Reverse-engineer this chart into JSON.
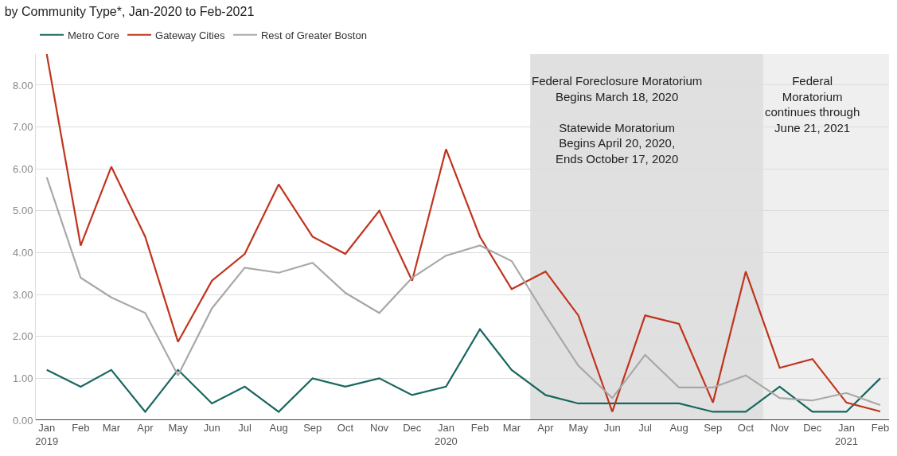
{
  "chart_data": {
    "type": "line",
    "title": "by Community Type*, Jan-2020 to Feb-2021",
    "x": [
      "2019-01",
      "2019-02",
      "2019-03",
      "2019-04",
      "2019-05",
      "2019-06",
      "2019-07",
      "2019-08",
      "2019-09",
      "2019-10",
      "2019-11",
      "2019-12",
      "2020-01",
      "2020-02",
      "2020-03",
      "2020-04",
      "2020-05",
      "2020-06",
      "2020-07",
      "2020-08",
      "2020-09",
      "2020-10",
      "2020-11",
      "2020-12",
      "2021-01",
      "2021-02"
    ],
    "series": [
      {
        "name": "Metro Core",
        "color": "#17675f",
        "values": [
          1.2,
          0.8,
          1.2,
          0.2,
          1.2,
          0.4,
          0.8,
          0.2,
          1.0,
          0.8,
          1.0,
          0.6,
          0.8,
          2.17,
          1.2,
          0.6,
          0.4,
          0.4,
          0.4,
          0.4,
          0.2,
          0.2,
          0.8,
          0.2,
          0.2,
          1.0
        ]
      },
      {
        "name": "Gateway Cities",
        "color": "#c0341d",
        "values": [
          8.74,
          4.17,
          6.05,
          4.38,
          1.87,
          3.33,
          3.97,
          5.63,
          4.38,
          3.97,
          5.0,
          3.33,
          6.47,
          4.38,
          3.13,
          3.55,
          2.5,
          0.2,
          2.5,
          2.3,
          0.42,
          3.55,
          1.25,
          1.46,
          0.42,
          0.21
        ]
      },
      {
        "name": "Rest of Greater Boston",
        "color": "#a8a8a8",
        "values": [
          5.8,
          3.4,
          2.93,
          2.56,
          1.07,
          2.67,
          3.64,
          3.52,
          3.76,
          3.04,
          2.56,
          3.4,
          3.93,
          4.17,
          3.8,
          2.5,
          1.3,
          0.53,
          1.56,
          0.78,
          0.78,
          1.07,
          0.53,
          0.47,
          0.65,
          0.36
        ]
      }
    ],
    "xlim": [
      "2018-12-22",
      "2021-02-09"
    ],
    "xticks": [
      {
        "value": "2019-01",
        "label": "Jan\n2019"
      },
      {
        "value": "2019-02",
        "label": "Feb"
      },
      {
        "value": "2019-03",
        "label": "Mar"
      },
      {
        "value": "2019-04",
        "label": "Apr"
      },
      {
        "value": "2019-05",
        "label": "May"
      },
      {
        "value": "2019-06",
        "label": "Jun"
      },
      {
        "value": "2019-07",
        "label": "Jul"
      },
      {
        "value": "2019-08",
        "label": "Aug"
      },
      {
        "value": "2019-09",
        "label": "Sep"
      },
      {
        "value": "2019-10",
        "label": "Oct"
      },
      {
        "value": "2019-11",
        "label": "Nov"
      },
      {
        "value": "2019-12",
        "label": "Dec"
      },
      {
        "value": "2020-01",
        "label": "Jan\n2020"
      },
      {
        "value": "2020-02",
        "label": "Feb"
      },
      {
        "value": "2020-03",
        "label": "Mar"
      },
      {
        "value": "2020-04",
        "label": "Apr"
      },
      {
        "value": "2020-05",
        "label": "May"
      },
      {
        "value": "2020-06",
        "label": "Jun"
      },
      {
        "value": "2020-07",
        "label": "Jul"
      },
      {
        "value": "2020-08",
        "label": "Aug"
      },
      {
        "value": "2020-09",
        "label": "Sep"
      },
      {
        "value": "2020-10",
        "label": "Oct"
      },
      {
        "value": "2020-11",
        "label": "Nov"
      },
      {
        "value": "2020-12",
        "label": "Dec"
      },
      {
        "value": "2021-01",
        "label": "Jan\n2021"
      },
      {
        "value": "2021-02",
        "label": "Feb"
      }
    ],
    "ylim": [
      0,
      8.74
    ],
    "yticks": [
      {
        "value": 0,
        "label": "0.00"
      },
      {
        "value": 1,
        "label": "1.00"
      },
      {
        "value": 2,
        "label": "2.00"
      },
      {
        "value": 3,
        "label": "3.00"
      },
      {
        "value": 4,
        "label": "4.00"
      },
      {
        "value": 5,
        "label": "5.00"
      },
      {
        "value": 6,
        "label": "6.00"
      },
      {
        "value": 7,
        "label": "7.00"
      },
      {
        "value": 8,
        "label": "8.00"
      }
    ],
    "bands": [
      {
        "axis": "x",
        "from": "2020-03-18",
        "to": "2020-10-17",
        "color": "#e0e0e0",
        "label": "Federal Foreclosure Moratorium\nBegins March 18, 2020\n\nStatewide Moratorium\nBegins April 20, 2020,\nEnds October 17, 2020"
      },
      {
        "axis": "x",
        "from": "2020-10-17",
        "to": "2021-02-09",
        "color": "#efefef",
        "label": "Federal\nMoratorium\ncontinues through\nJune 21, 2021"
      }
    ],
    "grid": "y",
    "legend": "top left",
    "line_style": "solid"
  }
}
